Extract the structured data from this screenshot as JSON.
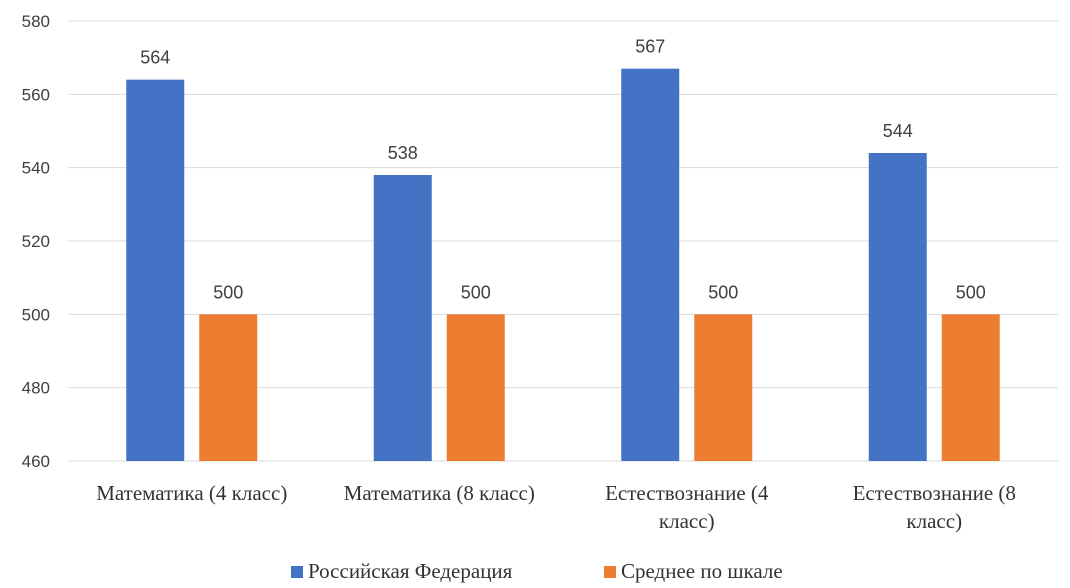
{
  "chart_data": {
    "type": "bar",
    "categories": [
      [
        "Математика (4 класс)"
      ],
      [
        "Математика (8 класс)"
      ],
      [
        "Естествознание (4",
        "класс)"
      ],
      [
        "Естествознание (8",
        "класс)"
      ]
    ],
    "series": [
      {
        "name": "Российская Федерация",
        "values": [
          564,
          538,
          567,
          544
        ],
        "color": "#4472C4"
      },
      {
        "name": "Среднее по шкале",
        "values": [
          500,
          500,
          500,
          500
        ],
        "color": "#ED7D31"
      }
    ],
    "title": "",
    "xlabel": "",
    "ylabel": "",
    "ylim": [
      460,
      580
    ],
    "yticks": [
      460,
      480,
      500,
      520,
      540,
      560,
      580
    ],
    "grid": true,
    "legend_position": "bottom"
  }
}
